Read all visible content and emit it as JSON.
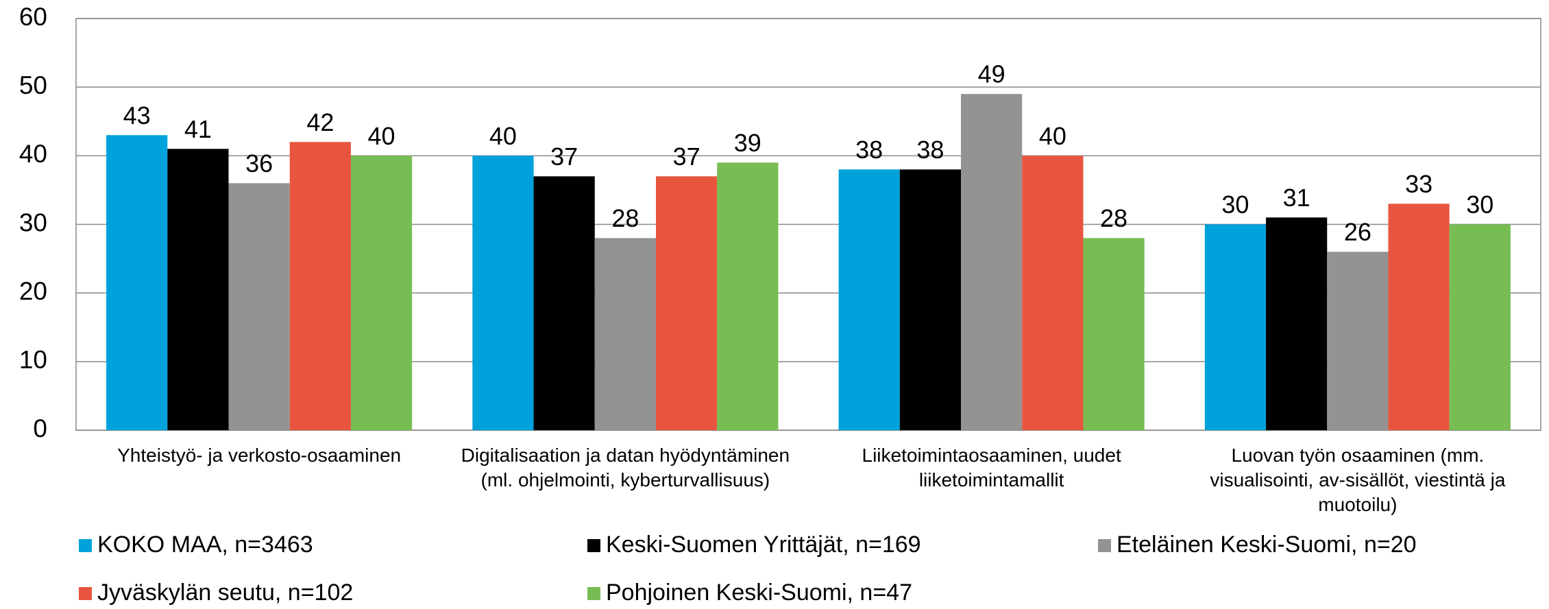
{
  "chart_data": {
    "type": "bar",
    "categories": [
      "Yhteistyö- ja verkosto-osaaminen",
      "Digitalisaation ja datan hyödyntäminen (ml. ohjelmointi, kyberturvallisuus)",
      "Liiketoimintaosaaminen, uudet liiketoimintamallit",
      "Luovan työn osaaminen (mm. visualisointi, av-sisällöt, viestintä ja muotoilu)"
    ],
    "series": [
      {
        "name": "KOKO MAA, n=3463",
        "color": "#00a2db",
        "values": [
          43,
          40,
          38,
          30
        ]
      },
      {
        "name": "Keski-Suomen Yrittäjät, n=169",
        "color": "#000000",
        "values": [
          41,
          37,
          38,
          31
        ]
      },
      {
        "name": "Eteläinen Keski-Suomi, n=20",
        "color": "#939393",
        "values": [
          36,
          28,
          49,
          26
        ]
      },
      {
        "name": "Jyväskylän seutu, n=102",
        "color": "#e8553e",
        "values": [
          42,
          37,
          40,
          33
        ]
      },
      {
        "name": "Pohjoinen Keski-Suomi, n=47",
        "color": "#78bd53",
        "values": [
          40,
          39,
          28,
          30
        ]
      }
    ],
    "ylim": [
      0,
      60
    ],
    "yticks": [
      0,
      10,
      20,
      30,
      40,
      50,
      60
    ],
    "grid": true,
    "legend": "bottom"
  }
}
